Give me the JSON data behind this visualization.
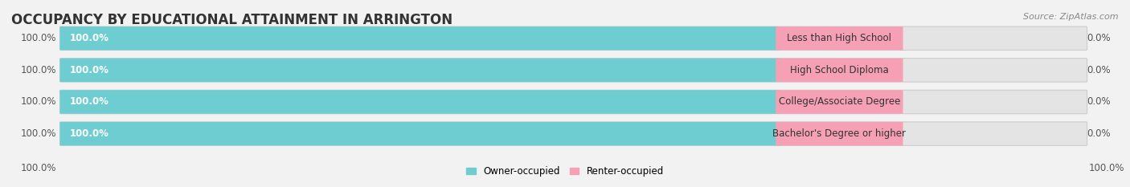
{
  "title": "OCCUPANCY BY EDUCATIONAL ATTAINMENT IN ARRINGTON",
  "source": "Source: ZipAtlas.com",
  "categories": [
    "Less than High School",
    "High School Diploma",
    "College/Associate Degree",
    "Bachelor's Degree or higher"
  ],
  "owner_values": [
    100.0,
    100.0,
    100.0,
    100.0
  ],
  "renter_values": [
    0.0,
    0.0,
    0.0,
    0.0
  ],
  "owner_color": "#6ecdd1",
  "renter_color": "#f5a0b4",
  "bar_bg_color": "#e4e4e4",
  "owner_label": "Owner-occupied",
  "renter_label": "Renter-occupied",
  "bottom_left_label": "100.0%",
  "bottom_right_label": "100.0%",
  "title_fontsize": 12,
  "bar_label_fontsize": 8.5,
  "cat_label_fontsize": 8.5,
  "legend_fontsize": 8.5,
  "source_fontsize": 8,
  "fig_width": 14.06,
  "fig_height": 2.33,
  "background_color": "#f2f2f2"
}
